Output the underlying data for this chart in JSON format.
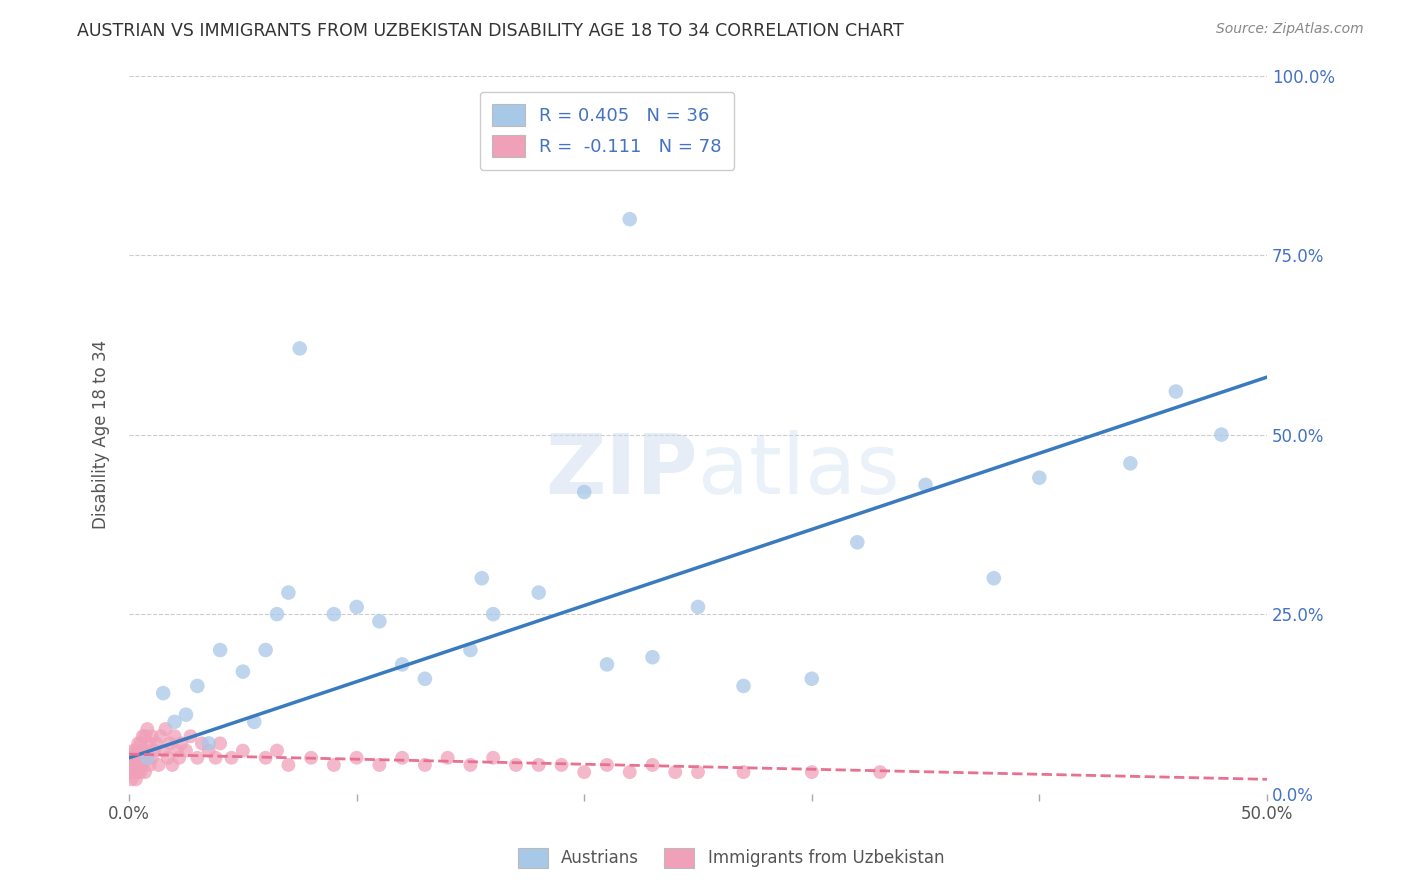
{
  "title": "AUSTRIAN VS IMMIGRANTS FROM UZBEKISTAN DISABILITY AGE 18 TO 34 CORRELATION CHART",
  "source": "Source: ZipAtlas.com",
  "ylabel": "Disability Age 18 to 34",
  "xlim": [
    0.0,
    0.5
  ],
  "ylim": [
    0.0,
    1.0
  ],
  "xtick_labels": [
    "0.0%",
    "",
    "",
    "",
    "",
    "50.0%"
  ],
  "xtick_vals": [
    0.0,
    0.1,
    0.2,
    0.3,
    0.4,
    0.5
  ],
  "ytick_labels_right": [
    "0.0%",
    "25.0%",
    "50.0%",
    "75.0%",
    "100.0%"
  ],
  "ytick_vals": [
    0.0,
    0.25,
    0.5,
    0.75,
    1.0
  ],
  "austrian_color": "#a8c8e8",
  "uzbekistan_color": "#f0a0b8",
  "line_austrian_color": "#3a7abf",
  "line_uzbekistan_color": "#e87090",
  "background_color": "#ffffff",
  "watermark": "ZIPatlas",
  "legend_R_austrian": "R = 0.405",
  "legend_N_austrian": "N = 36",
  "legend_R_uzbekistan": "R =  -0.111",
  "legend_N_uzbekistan": "N = 78",
  "austrian_x": [
    0.008,
    0.015,
    0.02,
    0.025,
    0.03,
    0.035,
    0.04,
    0.05,
    0.055,
    0.06,
    0.065,
    0.07,
    0.075,
    0.09,
    0.1,
    0.11,
    0.12,
    0.13,
    0.15,
    0.155,
    0.16,
    0.18,
    0.2,
    0.21,
    0.22,
    0.23,
    0.25,
    0.27,
    0.3,
    0.32,
    0.35,
    0.38,
    0.4,
    0.44,
    0.46,
    0.48
  ],
  "austrian_y": [
    0.05,
    0.14,
    0.1,
    0.11,
    0.15,
    0.07,
    0.2,
    0.17,
    0.1,
    0.2,
    0.25,
    0.28,
    0.62,
    0.25,
    0.26,
    0.24,
    0.18,
    0.16,
    0.2,
    0.3,
    0.25,
    0.28,
    0.42,
    0.18,
    0.8,
    0.19,
    0.26,
    0.15,
    0.16,
    0.35,
    0.43,
    0.3,
    0.44,
    0.46,
    0.56,
    0.5
  ],
  "uzbekistan_x": [
    0.001,
    0.001,
    0.001,
    0.001,
    0.002,
    0.002,
    0.002,
    0.002,
    0.003,
    0.003,
    0.003,
    0.003,
    0.004,
    0.004,
    0.004,
    0.004,
    0.005,
    0.005,
    0.005,
    0.005,
    0.006,
    0.006,
    0.006,
    0.007,
    0.007,
    0.007,
    0.008,
    0.008,
    0.009,
    0.009,
    0.01,
    0.01,
    0.011,
    0.012,
    0.013,
    0.014,
    0.015,
    0.016,
    0.017,
    0.018,
    0.019,
    0.02,
    0.021,
    0.022,
    0.023,
    0.025,
    0.027,
    0.03,
    0.032,
    0.035,
    0.038,
    0.04,
    0.045,
    0.05,
    0.06,
    0.065,
    0.07,
    0.08,
    0.09,
    0.1,
    0.11,
    0.12,
    0.13,
    0.14,
    0.15,
    0.16,
    0.17,
    0.18,
    0.19,
    0.2,
    0.21,
    0.22,
    0.23,
    0.24,
    0.25,
    0.27,
    0.3,
    0.33
  ],
  "uzbekistan_y": [
    0.03,
    0.04,
    0.02,
    0.05,
    0.03,
    0.04,
    0.06,
    0.03,
    0.05,
    0.04,
    0.06,
    0.02,
    0.04,
    0.06,
    0.03,
    0.07,
    0.03,
    0.05,
    0.07,
    0.04,
    0.06,
    0.08,
    0.04,
    0.06,
    0.08,
    0.03,
    0.05,
    0.09,
    0.04,
    0.07,
    0.05,
    0.08,
    0.06,
    0.07,
    0.04,
    0.08,
    0.06,
    0.09,
    0.05,
    0.07,
    0.04,
    0.08,
    0.06,
    0.05,
    0.07,
    0.06,
    0.08,
    0.05,
    0.07,
    0.06,
    0.05,
    0.07,
    0.05,
    0.06,
    0.05,
    0.06,
    0.04,
    0.05,
    0.04,
    0.05,
    0.04,
    0.05,
    0.04,
    0.05,
    0.04,
    0.05,
    0.04,
    0.04,
    0.04,
    0.03,
    0.04,
    0.03,
    0.04,
    0.03,
    0.03,
    0.03,
    0.03,
    0.03
  ],
  "austrian_line_x": [
    0.0,
    0.5
  ],
  "austrian_line_y": [
    0.05,
    0.58
  ],
  "uzbekistan_line_x": [
    0.0,
    0.5
  ],
  "uzbekistan_line_y": [
    0.055,
    0.02
  ]
}
